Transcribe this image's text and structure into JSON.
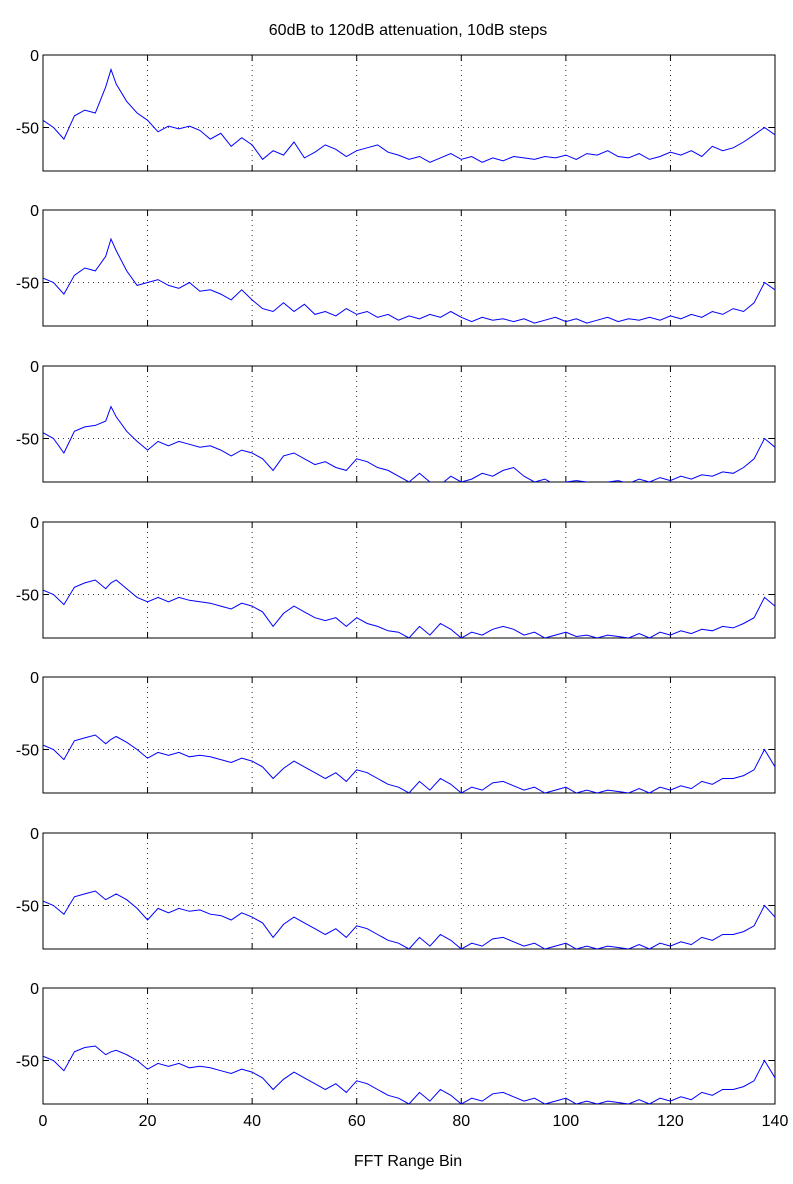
{
  "chart_data": {
    "type": "line",
    "title": "60dB to 120dB attenuation, 10dB steps",
    "xlabel": "FFT Range Bin",
    "ylabel": "",
    "xlim": [
      0,
      140
    ],
    "ylim": [
      -80,
      0
    ],
    "x_ticks": [
      0,
      20,
      40,
      60,
      80,
      100,
      120,
      140
    ],
    "y_ticks": [
      0,
      -50
    ],
    "grid": true,
    "line_color": "#0000ff",
    "subplots": [
      {
        "x": [
          0,
          2,
          4,
          6,
          8,
          10,
          12,
          13,
          14,
          16,
          18,
          20,
          22,
          24,
          26,
          28,
          30,
          32,
          34,
          36,
          38,
          40,
          42,
          44,
          46,
          48,
          50,
          52,
          54,
          56,
          58,
          60,
          62,
          64,
          66,
          68,
          70,
          72,
          74,
          76,
          78,
          80,
          82,
          84,
          86,
          88,
          90,
          92,
          94,
          96,
          98,
          100,
          102,
          104,
          106,
          108,
          110,
          112,
          114,
          116,
          118,
          120,
          122,
          124,
          126,
          128,
          130,
          132,
          134,
          136,
          138,
          140
        ],
        "y": [
          -45,
          -50,
          -58,
          -42,
          -38,
          -40,
          -22,
          -10,
          -20,
          -32,
          -40,
          -45,
          -53,
          -49,
          -51,
          -49,
          -52,
          -58,
          -54,
          -63,
          -57,
          -62,
          -72,
          -66,
          -69,
          -60,
          -71,
          -67,
          -62,
          -65,
          -70,
          -66,
          -64,
          -62,
          -67,
          -69,
          -72,
          -70,
          -74,
          -71,
          -68,
          -72,
          -70,
          -74,
          -71,
          -73,
          -70,
          -71,
          -72,
          -70,
          -71,
          -69,
          -72,
          -68,
          -69,
          -66,
          -70,
          -71,
          -68,
          -72,
          -70,
          -67,
          -69,
          -66,
          -70,
          -63,
          -66,
          -64,
          -60,
          -55,
          -50,
          -55
        ]
      },
      {
        "x": [
          0,
          2,
          4,
          6,
          8,
          10,
          12,
          13,
          14,
          16,
          18,
          20,
          22,
          24,
          26,
          28,
          30,
          32,
          34,
          36,
          38,
          40,
          42,
          44,
          46,
          48,
          50,
          52,
          54,
          56,
          58,
          60,
          62,
          64,
          66,
          68,
          70,
          72,
          74,
          76,
          78,
          80,
          82,
          84,
          86,
          88,
          90,
          92,
          94,
          96,
          98,
          100,
          102,
          104,
          106,
          108,
          110,
          112,
          114,
          116,
          118,
          120,
          122,
          124,
          126,
          128,
          130,
          132,
          134,
          136,
          138,
          140
        ],
        "y": [
          -47,
          -50,
          -58,
          -45,
          -40,
          -42,
          -32,
          -20,
          -28,
          -42,
          -52,
          -50,
          -48,
          -52,
          -54,
          -50,
          -56,
          -55,
          -58,
          -62,
          -55,
          -62,
          -68,
          -70,
          -64,
          -70,
          -65,
          -72,
          -70,
          -73,
          -68,
          -72,
          -70,
          -74,
          -72,
          -76,
          -73,
          -75,
          -72,
          -74,
          -70,
          -74,
          -77,
          -74,
          -76,
          -75,
          -77,
          -75,
          -78,
          -76,
          -74,
          -77,
          -75,
          -78,
          -76,
          -74,
          -77,
          -75,
          -76,
          -74,
          -76,
          -73,
          -75,
          -72,
          -74,
          -70,
          -72,
          -68,
          -70,
          -64,
          -50,
          -55
        ]
      },
      {
        "x": [
          0,
          2,
          4,
          6,
          8,
          10,
          12,
          13,
          14,
          16,
          18,
          20,
          22,
          24,
          26,
          28,
          30,
          32,
          34,
          36,
          38,
          40,
          42,
          44,
          46,
          48,
          50,
          52,
          54,
          56,
          58,
          60,
          62,
          64,
          66,
          68,
          70,
          72,
          74,
          76,
          78,
          80,
          82,
          84,
          86,
          88,
          90,
          92,
          94,
          96,
          98,
          100,
          102,
          104,
          106,
          108,
          110,
          112,
          114,
          116,
          118,
          120,
          122,
          124,
          126,
          128,
          130,
          132,
          134,
          136,
          138,
          140
        ],
        "y": [
          -46,
          -50,
          -60,
          -45,
          -42,
          -41,
          -38,
          -28,
          -35,
          -45,
          -52,
          -58,
          -52,
          -55,
          -52,
          -54,
          -56,
          -55,
          -58,
          -62,
          -58,
          -60,
          -64,
          -72,
          -62,
          -60,
          -64,
          -68,
          -66,
          -70,
          -72,
          -64,
          -66,
          -70,
          -72,
          -76,
          -80,
          -74,
          -80,
          -82,
          -76,
          -80,
          -78,
          -74,
          -76,
          -72,
          -70,
          -76,
          -80,
          -78,
          -82,
          -80,
          -79,
          -80,
          -82,
          -80,
          -79,
          -81,
          -78,
          -80,
          -77,
          -79,
          -76,
          -78,
          -75,
          -76,
          -73,
          -74,
          -70,
          -64,
          -50,
          -56
        ]
      },
      {
        "x": [
          0,
          2,
          4,
          6,
          8,
          10,
          12,
          13,
          14,
          16,
          18,
          20,
          22,
          24,
          26,
          28,
          30,
          32,
          34,
          36,
          38,
          40,
          42,
          44,
          46,
          48,
          50,
          52,
          54,
          56,
          58,
          60,
          62,
          64,
          66,
          68,
          70,
          72,
          74,
          76,
          78,
          80,
          82,
          84,
          86,
          88,
          90,
          92,
          94,
          96,
          98,
          100,
          102,
          104,
          106,
          108,
          110,
          112,
          114,
          116,
          118,
          120,
          122,
          124,
          126,
          128,
          130,
          132,
          134,
          136,
          138,
          140
        ],
        "y": [
          -47,
          -50,
          -57,
          -45,
          -42,
          -40,
          -46,
          -42,
          -40,
          -46,
          -52,
          -55,
          -52,
          -55,
          -52,
          -54,
          -55,
          -56,
          -58,
          -60,
          -56,
          -58,
          -62,
          -72,
          -63,
          -58,
          -62,
          -66,
          -68,
          -66,
          -72,
          -66,
          -70,
          -72,
          -75,
          -76,
          -80,
          -72,
          -78,
          -70,
          -74,
          -80,
          -76,
          -78,
          -74,
          -72,
          -74,
          -78,
          -76,
          -80,
          -78,
          -76,
          -79,
          -78,
          -80,
          -78,
          -79,
          -80,
          -77,
          -80,
          -76,
          -78,
          -75,
          -77,
          -74,
          -75,
          -72,
          -73,
          -70,
          -66,
          -52,
          -58
        ]
      },
      {
        "x": [
          0,
          2,
          4,
          6,
          8,
          10,
          12,
          13,
          14,
          16,
          18,
          20,
          22,
          24,
          26,
          28,
          30,
          32,
          34,
          36,
          38,
          40,
          42,
          44,
          46,
          48,
          50,
          52,
          54,
          56,
          58,
          60,
          62,
          64,
          66,
          68,
          70,
          72,
          74,
          76,
          78,
          80,
          82,
          84,
          86,
          88,
          90,
          92,
          94,
          96,
          98,
          100,
          102,
          104,
          106,
          108,
          110,
          112,
          114,
          116,
          118,
          120,
          122,
          124,
          126,
          128,
          130,
          132,
          134,
          136,
          138,
          140
        ],
        "y": [
          -47,
          -50,
          -57,
          -44,
          -42,
          -40,
          -46,
          -43,
          -41,
          -45,
          -50,
          -56,
          -52,
          -54,
          -52,
          -55,
          -54,
          -55,
          -57,
          -59,
          -56,
          -58,
          -62,
          -70,
          -63,
          -58,
          -62,
          -66,
          -70,
          -66,
          -72,
          -64,
          -66,
          -70,
          -74,
          -76,
          -80,
          -72,
          -78,
          -70,
          -74,
          -80,
          -76,
          -78,
          -73,
          -72,
          -75,
          -78,
          -76,
          -80,
          -78,
          -76,
          -80,
          -78,
          -80,
          -78,
          -79,
          -80,
          -77,
          -80,
          -76,
          -78,
          -75,
          -77,
          -72,
          -74,
          -70,
          -70,
          -68,
          -64,
          -50,
          -62
        ]
      },
      {
        "x": [
          0,
          2,
          4,
          6,
          8,
          10,
          12,
          13,
          14,
          16,
          18,
          20,
          22,
          24,
          26,
          28,
          30,
          32,
          34,
          36,
          38,
          40,
          42,
          44,
          46,
          48,
          50,
          52,
          54,
          56,
          58,
          60,
          62,
          64,
          66,
          68,
          70,
          72,
          74,
          76,
          78,
          80,
          82,
          84,
          86,
          88,
          90,
          92,
          94,
          96,
          98,
          100,
          102,
          104,
          106,
          108,
          110,
          112,
          114,
          116,
          118,
          120,
          122,
          124,
          126,
          128,
          130,
          132,
          134,
          136,
          138,
          140
        ],
        "y": [
          -47,
          -50,
          -56,
          -44,
          -42,
          -40,
          -46,
          -44,
          -42,
          -46,
          -52,
          -60,
          -52,
          -55,
          -52,
          -54,
          -53,
          -56,
          -57,
          -60,
          -55,
          -58,
          -62,
          -72,
          -63,
          -58,
          -62,
          -66,
          -70,
          -66,
          -72,
          -64,
          -66,
          -70,
          -74,
          -76,
          -80,
          -72,
          -78,
          -70,
          -74,
          -80,
          -76,
          -78,
          -73,
          -72,
          -75,
          -78,
          -76,
          -80,
          -78,
          -76,
          -80,
          -78,
          -80,
          -78,
          -79,
          -80,
          -77,
          -80,
          -76,
          -78,
          -75,
          -77,
          -72,
          -74,
          -70,
          -70,
          -68,
          -64,
          -50,
          -58
        ]
      },
      {
        "x": [
          0,
          2,
          4,
          6,
          8,
          10,
          12,
          13,
          14,
          16,
          18,
          20,
          22,
          24,
          26,
          28,
          30,
          32,
          34,
          36,
          38,
          40,
          42,
          44,
          46,
          48,
          50,
          52,
          54,
          56,
          58,
          60,
          62,
          64,
          66,
          68,
          70,
          72,
          74,
          76,
          78,
          80,
          82,
          84,
          86,
          88,
          90,
          92,
          94,
          96,
          98,
          100,
          102,
          104,
          106,
          108,
          110,
          112,
          114,
          116,
          118,
          120,
          122,
          124,
          126,
          128,
          130,
          132,
          134,
          136,
          138,
          140
        ],
        "y": [
          -47,
          -50,
          -57,
          -44,
          -41,
          -40,
          -46,
          -44,
          -43,
          -46,
          -50,
          -56,
          -52,
          -54,
          -52,
          -55,
          -54,
          -55,
          -57,
          -59,
          -56,
          -58,
          -62,
          -70,
          -63,
          -58,
          -62,
          -66,
          -70,
          -66,
          -72,
          -64,
          -66,
          -70,
          -74,
          -76,
          -80,
          -72,
          -78,
          -70,
          -74,
          -80,
          -76,
          -78,
          -73,
          -72,
          -75,
          -78,
          -76,
          -80,
          -78,
          -76,
          -80,
          -78,
          -80,
          -78,
          -79,
          -80,
          -77,
          -80,
          -76,
          -78,
          -75,
          -77,
          -72,
          -74,
          -70,
          -70,
          -68,
          -64,
          -50,
          -62
        ]
      }
    ]
  }
}
